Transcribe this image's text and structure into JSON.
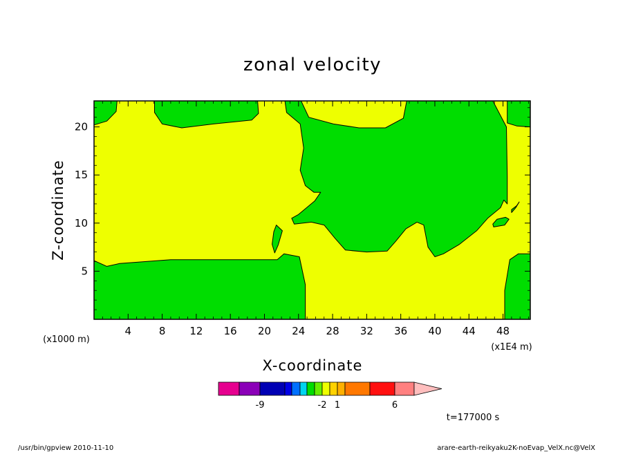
{
  "chart_data": {
    "type": "heatmap",
    "title": "zonal velocity",
    "xlabel": "X-coordinate",
    "ylabel": "Z-coordinate",
    "x_unit_note": "(x1E4 m)",
    "y_unit_note": "(x1000 m)",
    "x_ticks": [
      4,
      8,
      12,
      16,
      20,
      24,
      28,
      32,
      36,
      40,
      44,
      48
    ],
    "y_ticks": [
      5,
      10,
      15,
      20
    ],
    "xlim": [
      0,
      51.2
    ],
    "ylim": [
      0,
      22.7
    ],
    "grid": false,
    "legend": "bottom colorbar",
    "background_level": {
      "color": "#EEFF00",
      "range": "0 to 1"
    },
    "regions": [
      {
        "name": "region-negative-lower-left",
        "color": "#00DD00",
        "range": "-1 to 0",
        "points": [
          [
            0,
            0
          ],
          [
            24.8,
            0
          ],
          [
            24.8,
            3.6
          ],
          [
            24.1,
            6.5
          ],
          [
            22.3,
            6.8
          ],
          [
            21.5,
            6.2
          ],
          [
            19,
            6.2
          ],
          [
            15,
            6.2
          ],
          [
            9,
            6.2
          ],
          [
            3,
            5.8
          ],
          [
            1.5,
            5.5
          ],
          [
            0,
            6.1
          ]
        ]
      },
      {
        "name": "region-negative-upper-left",
        "color": "#00DD00",
        "range": "-1 to 0",
        "points": [
          [
            0,
            22.7
          ],
          [
            2.7,
            22.7
          ],
          [
            2.6,
            21.6
          ],
          [
            1.5,
            20.6
          ],
          [
            0,
            20.2
          ]
        ]
      },
      {
        "name": "region-negative-upper-mid",
        "color": "#00DD00",
        "range": "-1 to 0",
        "points": [
          [
            7.1,
            22.7
          ],
          [
            19.2,
            22.7
          ],
          [
            19.3,
            21.4
          ],
          [
            18.5,
            20.7
          ],
          [
            14,
            20.3
          ],
          [
            10.3,
            19.9
          ],
          [
            8,
            20.3
          ],
          [
            7.1,
            21.5
          ]
        ]
      },
      {
        "name": "region-negative-center",
        "color": "#00DD00",
        "range": "-1 to 0",
        "points": [
          [
            22.4,
            22.7
          ],
          [
            22.6,
            21.5
          ],
          [
            24.2,
            20.3
          ],
          [
            24.6,
            17.8
          ],
          [
            24.2,
            15.5
          ],
          [
            24.8,
            13.9
          ],
          [
            25.8,
            13.2
          ],
          [
            26.6,
            13.2
          ],
          [
            25.9,
            12.3
          ],
          [
            24,
            10.9
          ],
          [
            23.2,
            10.5
          ],
          [
            23.5,
            9.9
          ],
          [
            25.5,
            10.1
          ],
          [
            27,
            9.8
          ],
          [
            28.3,
            8.4
          ],
          [
            29.5,
            7.2
          ],
          [
            32,
            7
          ],
          [
            34.4,
            7.1
          ],
          [
            35.4,
            8.1
          ],
          [
            36.6,
            9.4
          ],
          [
            37.9,
            10.1
          ],
          [
            38.7,
            9.8
          ],
          [
            39.2,
            7.5
          ],
          [
            40,
            6.5
          ],
          [
            41,
            6.8
          ],
          [
            42.9,
            7.8
          ],
          [
            44.9,
            9.2
          ],
          [
            46.2,
            10.5
          ],
          [
            47.7,
            11.6
          ],
          [
            48.1,
            12.4
          ],
          [
            48.5,
            12
          ],
          [
            48.5,
            14.8
          ],
          [
            48.4,
            20
          ],
          [
            46.8,
            22.7
          ],
          [
            36.7,
            22.7
          ],
          [
            36.3,
            20.9
          ],
          [
            34.2,
            19.9
          ],
          [
            31.1,
            19.9
          ],
          [
            28.1,
            20.3
          ],
          [
            25.2,
            21
          ],
          [
            24.3,
            22.7
          ]
        ]
      },
      {
        "name": "region-negative-small-blob",
        "color": "#00DD00",
        "range": "-1 to 0",
        "points": [
          [
            21.4,
            9.8
          ],
          [
            22.1,
            9.2
          ],
          [
            21.6,
            7.7
          ],
          [
            21.2,
            6.9
          ],
          [
            20.9,
            7.8
          ],
          [
            21.1,
            9.1
          ]
        ]
      },
      {
        "name": "region-negative-right-island",
        "color": "#00DD00",
        "range": "-1 to 0",
        "points": [
          [
            46.9,
            9.6
          ],
          [
            48.2,
            9.8
          ],
          [
            48.7,
            10.4
          ],
          [
            48.3,
            10.6
          ],
          [
            47.3,
            10.4
          ],
          [
            46.8,
            9.9
          ]
        ]
      },
      {
        "name": "region-negative-right-dot",
        "color": "#00DD00",
        "range": "-1 to 0",
        "points": [
          [
            49,
            11.1
          ],
          [
            49.5,
            11.6
          ],
          [
            49.9,
            12.2
          ],
          [
            49.6,
            11.8
          ],
          [
            49,
            11.4
          ]
        ]
      },
      {
        "name": "region-negative-upper-right",
        "color": "#00DD00",
        "range": "-1 to 0",
        "points": [
          [
            48.5,
            22.7
          ],
          [
            51.2,
            22.7
          ],
          [
            51.2,
            20
          ],
          [
            49.6,
            20.1
          ],
          [
            48.5,
            20.4
          ]
        ]
      },
      {
        "name": "region-negative-lower-right",
        "color": "#00DD00",
        "range": "-1 to 0",
        "points": [
          [
            48.2,
            0
          ],
          [
            51.2,
            0
          ],
          [
            51.2,
            6.8
          ],
          [
            49.8,
            6.8
          ],
          [
            48.8,
            6.2
          ],
          [
            48.2,
            3
          ]
        ]
      }
    ],
    "colorbar": {
      "colors": [
        "#E6008F",
        "#8B00B8",
        "#0000B4",
        "#0000E6",
        "#0070FF",
        "#00D4F0",
        "#00DD00",
        "#66EE00",
        "#EEFF00",
        "#FFD200",
        "#FFB000",
        "#FF7800",
        "#FF1010",
        "#FF8080"
      ],
      "arrow_color": "#FFBEBE",
      "labels": [
        {
          "text": "-9",
          "index": 1
        },
        {
          "text": "-2",
          "index": 7
        },
        {
          "text": "1",
          "index": 9
        },
        {
          "text": "6",
          "index": 12
        }
      ]
    }
  },
  "annotations": {
    "time": "t=177000 s",
    "footer_left": "/usr/bin/gpview   2010-11-10",
    "footer_right": "arare-earth-reikyaku2K-noEvap_VelX.nc@VelX"
  }
}
